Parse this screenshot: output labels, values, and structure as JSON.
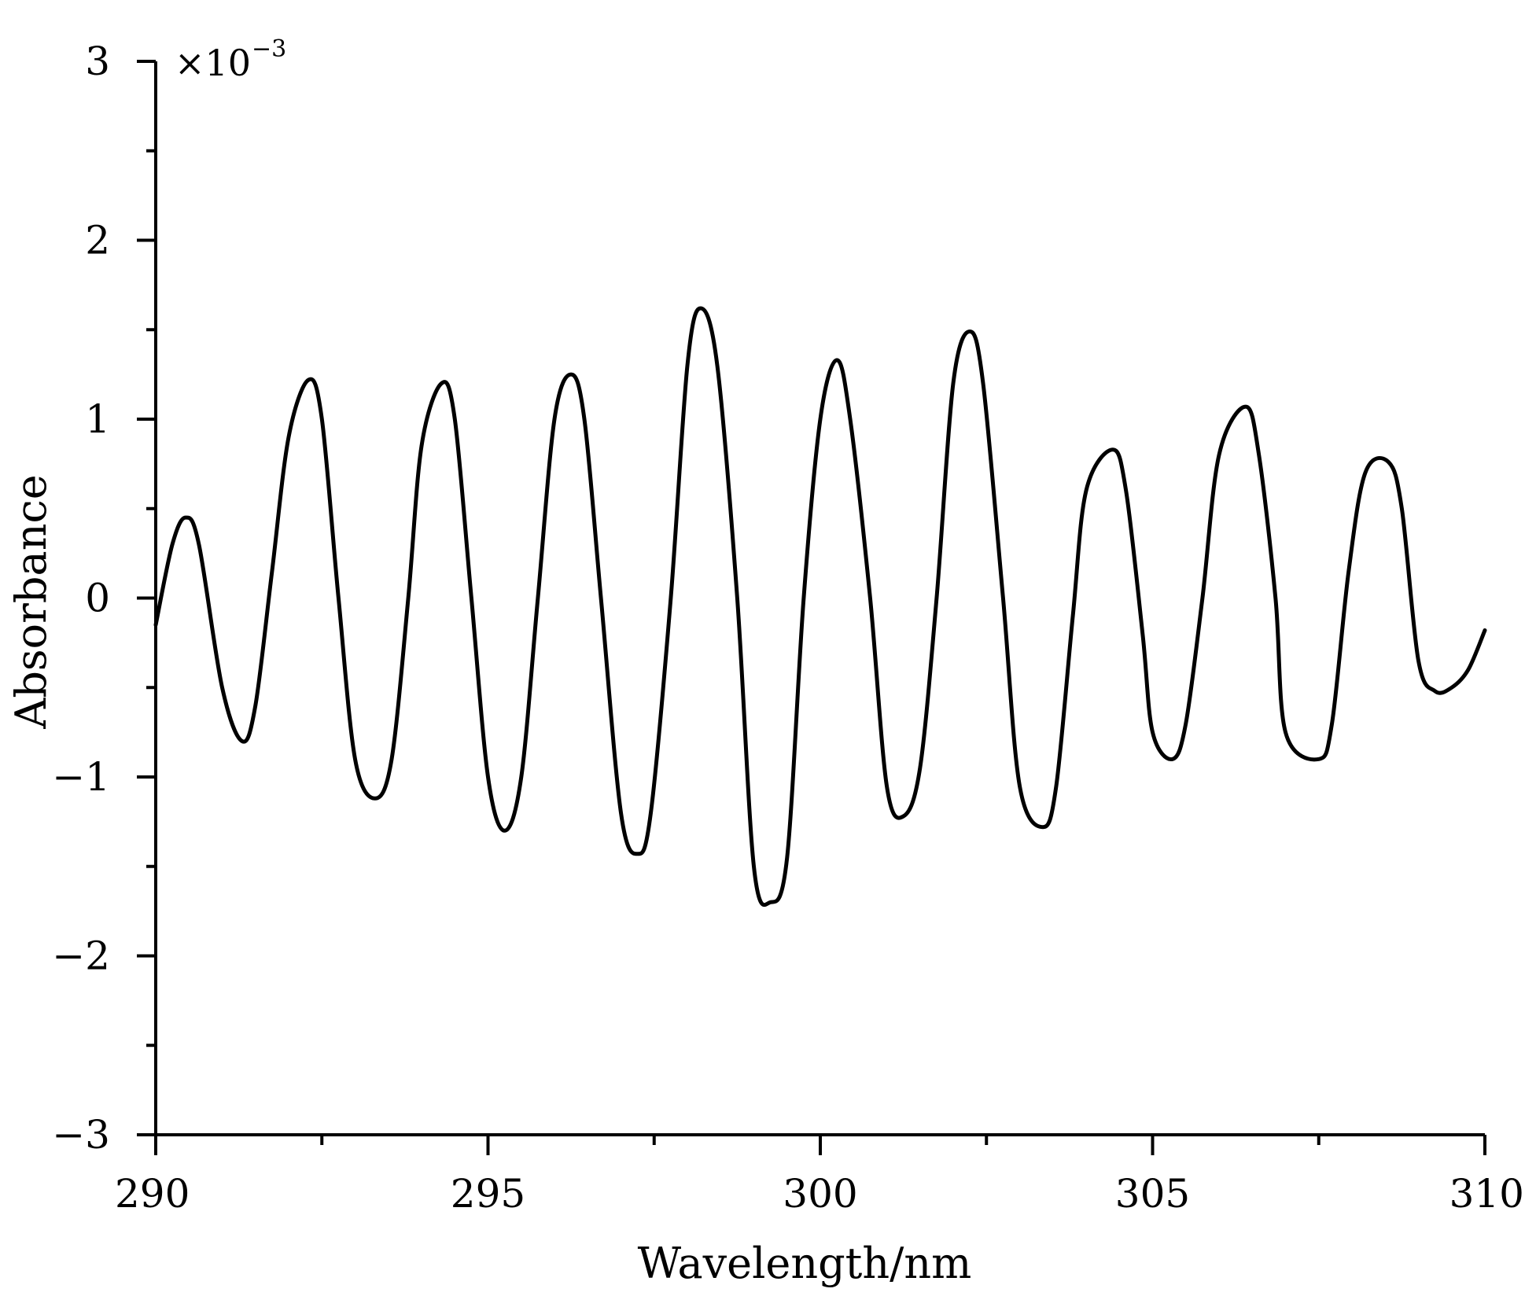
{
  "chart_data": {
    "type": "line",
    "title": "",
    "xlabel": "Wavelength/nm",
    "ylabel": "Absorbance",
    "xlim": [
      290,
      310
    ],
    "ylim": [
      -3,
      3
    ],
    "x_ticks": [
      290,
      295,
      300,
      305,
      310
    ],
    "x_tick_labels": [
      "290",
      "295",
      "300",
      "305",
      "310"
    ],
    "y_ticks": [
      -3,
      -2,
      -1,
      0,
      1,
      2,
      3
    ],
    "y_tick_labels": [
      "−3",
      "−2",
      "−1",
      "0",
      "1",
      "2",
      "3"
    ],
    "y_scale_base": "×10",
    "y_scale_exponent": "−3",
    "grid": false,
    "line_color": "#000000",
    "series": [
      {
        "x": [
          290.0,
          290.25,
          290.45,
          290.65,
          291.0,
          291.3,
          291.5,
          291.75,
          292.0,
          292.3,
          292.5,
          292.75,
          293.0,
          293.3,
          293.55,
          293.8,
          294.0,
          294.3,
          294.5,
          294.75,
          295.0,
          295.25,
          295.5,
          295.75,
          296.0,
          296.25,
          296.45,
          296.7,
          297.0,
          297.25,
          297.45,
          297.75,
          298.0,
          298.2,
          298.45,
          298.75,
          299.0,
          299.25,
          299.5,
          299.75,
          300.0,
          300.25,
          300.45,
          300.75,
          301.0,
          301.25,
          301.5,
          301.75,
          302.0,
          302.25,
          302.45,
          302.75,
          303.0,
          303.35,
          303.55,
          303.8,
          304.0,
          304.4,
          304.6,
          304.85,
          305.0,
          305.3,
          305.5,
          305.75,
          306.0,
          306.4,
          306.6,
          306.85,
          307.0,
          307.5,
          307.7,
          307.95,
          308.2,
          308.55,
          308.75,
          309.0,
          309.25,
          309.5,
          309.75,
          310.0
        ],
        "y": [
          -0.15,
          0.3,
          0.45,
          0.3,
          -0.5,
          -0.8,
          -0.6,
          0.15,
          0.9,
          1.22,
          1.0,
          0.0,
          -0.9,
          -1.12,
          -0.9,
          0.0,
          0.85,
          1.2,
          1.0,
          0.0,
          -1.0,
          -1.3,
          -1.0,
          0.0,
          1.0,
          1.25,
          1.0,
          0.0,
          -1.2,
          -1.43,
          -1.2,
          0.0,
          1.3,
          1.62,
          1.3,
          0.0,
          -1.5,
          -1.7,
          -1.45,
          0.0,
          1.0,
          1.33,
          1.0,
          0.0,
          -1.05,
          -1.22,
          -0.95,
          0.0,
          1.2,
          1.49,
          1.2,
          0.0,
          -1.05,
          -1.28,
          -1.05,
          -0.1,
          0.6,
          0.83,
          0.6,
          -0.2,
          -0.75,
          -0.9,
          -0.7,
          0.0,
          0.8,
          1.07,
          0.8,
          0.0,
          -0.75,
          -0.9,
          -0.7,
          0.15,
          0.7,
          0.76,
          0.5,
          -0.35,
          -0.52,
          -0.5,
          -0.4,
          -0.18
        ]
      }
    ]
  }
}
